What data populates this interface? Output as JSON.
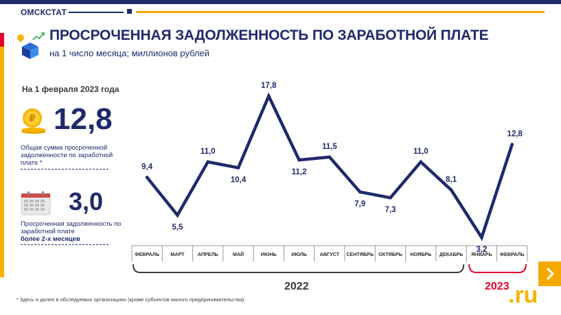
{
  "brand": "ОМСКСТАТ",
  "title": "ПРОСРОЧЕННАЯ ЗАДОЛЖЕННОСТЬ ПО ЗАРАБОТНОЙ ПЛАТЕ",
  "subtitle": "на 1 число месяца; миллионов рублей",
  "panel": {
    "date": "На 1 февраля 2023 года",
    "total_value": "12,8",
    "total_desc": "Общая сумма просроченной задолженности по заработной плате *",
    "overdue_value": "3,0",
    "overdue_desc_plain": "Просроченная задолженность по заработной плате",
    "overdue_desc_bold": "более 2-х месяцев"
  },
  "chart_data": {
    "type": "line",
    "categories": [
      "ФЕВРАЛЬ",
      "МАРТ",
      "АПРЕЛЬ",
      "МАЙ",
      "ИЮНЬ",
      "ИЮЛЬ",
      "АВГУСТ",
      "СЕНТЯБРЬ",
      "ОКТЯБРЬ",
      "НОЯБРЬ",
      "ДЕКАБРЬ",
      "ЯНВАРЬ",
      "ФЕВРАЛЬ"
    ],
    "values": [
      9.4,
      5.5,
      11.0,
      10.4,
      17.8,
      11.2,
      11.5,
      7.9,
      7.3,
      11.0,
      8.1,
      3.2,
      12.8
    ],
    "labels": [
      "9,4",
      "5,5",
      "11,0",
      "10,4",
      "17,8",
      "11,2",
      "11,5",
      "7,9",
      "7,3",
      "11,0",
      "8,1",
      "3,2",
      "12,8"
    ],
    "groups": [
      {
        "label": "2022"
      },
      {
        "label": "2023"
      }
    ],
    "line_color": "#1f2a6b",
    "group_2023_color": "#e4002b",
    "grid": false
  },
  "footnote": "* Здесь и далее в обследуемых организациях (кроме субъектов малого предпринимательства).",
  "watermark": ".ru",
  "colors": {
    "navy": "#1f2a6b",
    "accent": "#f5a800",
    "red": "#e4002b"
  }
}
